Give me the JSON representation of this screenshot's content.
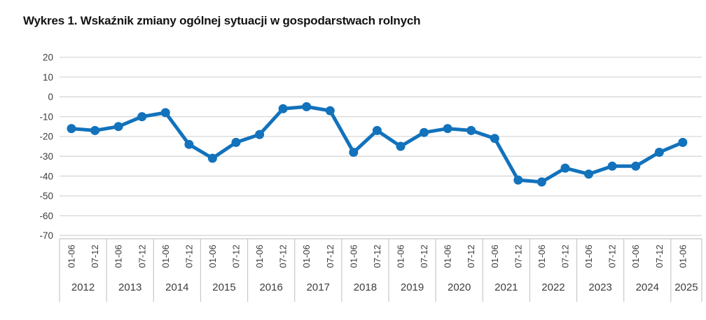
{
  "title": "Wykres 1. Wskaźnik zmiany ogólnej sytuacji w gospodarstwach rolnych",
  "chart_data": {
    "type": "line",
    "title": "Wykres 1. Wskaźnik zmiany ogólnej sytuacji w gospodarstwach rolnych",
    "xlabel": "",
    "ylabel": "",
    "ylim": [
      -70,
      20
    ],
    "yticks": [
      20,
      10,
      0,
      -10,
      -20,
      -30,
      -40,
      -50,
      -60,
      -70
    ],
    "grid": "horizontal",
    "legend_position": "none",
    "line_color": "#1272bc",
    "grid_color": "#d8d8d8",
    "axis_band_color": "#c8c8c8",
    "tick_text_color": "#3d3d3d",
    "x_groups": [
      {
        "year": "2012",
        "periods": [
          "01-06",
          "07-12"
        ]
      },
      {
        "year": "2013",
        "periods": [
          "01-06",
          "07-12"
        ]
      },
      {
        "year": "2014",
        "periods": [
          "01-06",
          "07-12"
        ]
      },
      {
        "year": "2015",
        "periods": [
          "01-06",
          "07-12"
        ]
      },
      {
        "year": "2016",
        "periods": [
          "01-06",
          "07-12"
        ]
      },
      {
        "year": "2017",
        "periods": [
          "01-06",
          "07-12"
        ]
      },
      {
        "year": "2018",
        "periods": [
          "01-06",
          "07-12"
        ]
      },
      {
        "year": "2019",
        "periods": [
          "01-06",
          "07-12"
        ]
      },
      {
        "year": "2020",
        "periods": [
          "01-06",
          "07-12"
        ]
      },
      {
        "year": "2021",
        "periods": [
          "01-06",
          "07-12"
        ]
      },
      {
        "year": "2022",
        "periods": [
          "01-06",
          "07-12"
        ]
      },
      {
        "year": "2023",
        "periods": [
          "01-06",
          "07-12"
        ]
      },
      {
        "year": "2024",
        "periods": [
          "01-06",
          "07-12"
        ]
      },
      {
        "year": "2025",
        "periods": [
          "01-06"
        ]
      }
    ],
    "categories": [
      "2012 01-06",
      "2012 07-12",
      "2013 01-06",
      "2013 07-12",
      "2014 01-06",
      "2014 07-12",
      "2015 01-06",
      "2015 07-12",
      "2016 01-06",
      "2016 07-12",
      "2017 01-06",
      "2017 07-12",
      "2018 01-06",
      "2018 07-12",
      "2019 01-06",
      "2019 07-12",
      "2020 01-06",
      "2020 07-12",
      "2021 01-06",
      "2021 07-12",
      "2022 01-06",
      "2022 07-12",
      "2023 01-06",
      "2023 07-12",
      "2024 01-06",
      "2024 07-12",
      "2025 01-06"
    ],
    "values": [
      -16,
      -17,
      -15,
      -10,
      -8,
      -24,
      -31,
      -23,
      -19,
      -6,
      -5,
      -7,
      -28,
      -17,
      -25,
      -18,
      -16,
      -17,
      -21,
      -42,
      -43,
      -36,
      -39,
      -35,
      -35,
      -28,
      -23
    ]
  }
}
